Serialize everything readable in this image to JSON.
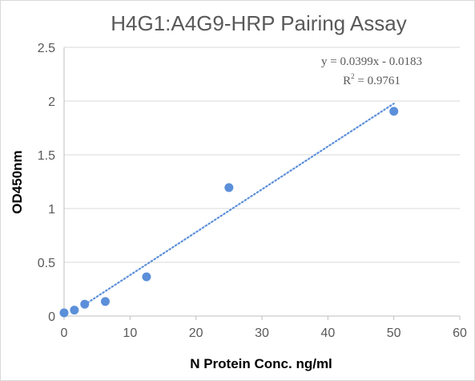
{
  "chart_data": {
    "type": "scatter",
    "title": "H4G1:A4G9-HRP Pairing Assay",
    "xlabel": "N Protein Conc. ng/ml",
    "ylabel": "OD450nm",
    "xlim": [
      0,
      60
    ],
    "ylim": [
      0,
      2.5
    ],
    "x_ticks": [
      0,
      10,
      20,
      30,
      40,
      50,
      60
    ],
    "y_ticks": [
      0,
      0.5,
      1,
      1.5,
      2,
      2.5
    ],
    "x_tick_labels": [
      "0",
      "10",
      "20",
      "30",
      "40",
      "50",
      "60"
    ],
    "y_tick_labels": [
      "0",
      "0.5",
      "1",
      "1.5",
      "2",
      "2.5"
    ],
    "grid": "horizontal",
    "legend": "none",
    "series": [
      {
        "x": [
          0,
          1.56,
          3.125,
          6.25,
          12.5,
          25,
          50
        ],
        "y": [
          0.03,
          0.055,
          0.11,
          0.135,
          0.365,
          1.195,
          1.905
        ],
        "color": "#5b8fd9"
      }
    ],
    "trendline": {
      "type": "linear",
      "slope": 0.0399,
      "intercept": -0.0183,
      "x_range": [
        3.125,
        50
      ],
      "color": "#5b8fd9",
      "style": "dotted"
    },
    "annotations": {
      "equation": "y = 0.0399x - 0.0183",
      "r2_prefix": "R",
      "r2_sup": "2",
      "r2_value": " = 0.9761"
    }
  }
}
